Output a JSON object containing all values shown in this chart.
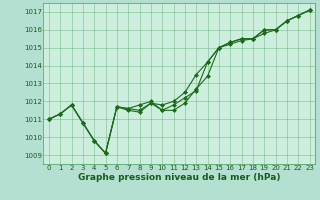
{
  "xlabel": "Graphe pression niveau de la mer (hPa)",
  "x_values": [
    0,
    1,
    2,
    3,
    4,
    5,
    6,
    7,
    8,
    9,
    10,
    11,
    12,
    13,
    14,
    15,
    16,
    17,
    18,
    19,
    20,
    21,
    22,
    23
  ],
  "series": [
    [
      1011.0,
      1011.3,
      1011.8,
      1010.8,
      1009.8,
      1009.1,
      1011.7,
      1011.6,
      1011.5,
      1011.9,
      1011.5,
      1011.5,
      1011.9,
      1012.7,
      1013.4,
      1015.0,
      1015.2,
      1015.4,
      1015.5,
      1015.8,
      1016.0,
      1016.5,
      1016.8,
      1017.1
    ],
    [
      1011.0,
      1011.3,
      1011.8,
      1010.8,
      1009.8,
      1009.1,
      1011.7,
      1011.6,
      1011.8,
      1012.0,
      1011.5,
      1011.8,
      1012.2,
      1012.6,
      1014.2,
      1015.0,
      1015.3,
      1015.5,
      1015.5,
      1016.0,
      1016.0,
      1016.5,
      1016.8,
      1017.1
    ],
    [
      1011.0,
      1011.3,
      1011.8,
      1010.8,
      1009.8,
      1009.1,
      1011.7,
      1011.5,
      1011.4,
      1011.9,
      1011.8,
      1012.0,
      1012.5,
      1013.5,
      1014.2,
      1015.0,
      1015.3,
      1015.5,
      1015.5,
      1016.0,
      1016.0,
      1016.5,
      1016.8,
      1017.1
    ]
  ],
  "line_color": "#1a6b1a",
  "marker": "D",
  "markersize": 2.0,
  "linewidth": 0.8,
  "ylim": [
    1008.5,
    1017.5
  ],
  "yticks": [
    1009,
    1010,
    1011,
    1012,
    1013,
    1014,
    1015,
    1016,
    1017
  ],
  "xlim": [
    -0.5,
    23.5
  ],
  "xticks": [
    0,
    1,
    2,
    3,
    4,
    5,
    6,
    7,
    8,
    9,
    10,
    11,
    12,
    13,
    14,
    15,
    16,
    17,
    18,
    19,
    20,
    21,
    22,
    23
  ],
  "bg_color": "#b3e0d0",
  "plot_bg_color": "#cceedd",
  "grid_color": "#4a9a5a",
  "tick_color": "#1a5a1a",
  "title_color": "#1a5a1a",
  "xlabel_fontsize": 6.5,
  "tick_fontsize": 5.0
}
